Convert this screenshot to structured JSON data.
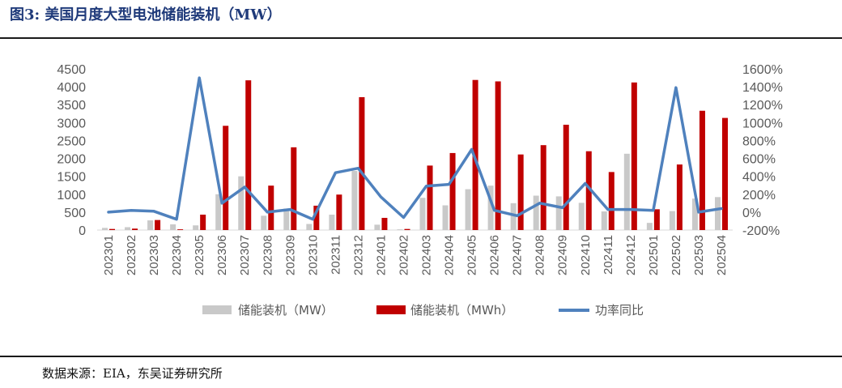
{
  "figure": {
    "title": "图3:  美国月度大型电池储能装机（MW）",
    "source": "数据来源：EIA，东吴证券研究所"
  },
  "colors": {
    "mw": "#c9c9c9",
    "mwh": "#c00000",
    "yoy": "#4f81bd",
    "title": "#1f3a7a"
  },
  "chart_data": {
    "type": "bar",
    "categories": [
      "202301",
      "202302",
      "202303",
      "202304",
      "202305",
      "202306",
      "202307",
      "202308",
      "202309",
      "202310",
      "202311",
      "202312",
      "202401",
      "202402",
      "202403",
      "202404",
      "202405",
      "202406",
      "202407",
      "202408",
      "202409",
      "202410",
      "202411",
      "202412",
      "202501",
      "202502",
      "202503",
      "202504"
    ],
    "series": [
      {
        "name": "储能装机（MW）",
        "type": "bar",
        "axis": "left",
        "values": [
          60,
          80,
          270,
          160,
          130,
          1000,
          1500,
          400,
          600,
          170,
          430,
          1650,
          150,
          20,
          900,
          690,
          1140,
          1240,
          750,
          960,
          940,
          760,
          520,
          2130,
          200,
          530,
          880,
          920
        ]
      },
      {
        "name": "储能装机（MWh）",
        "type": "bar",
        "axis": "left",
        "values": [
          30,
          40,
          280,
          20,
          430,
          2910,
          4180,
          1240,
          2310,
          680,
          990,
          3710,
          340,
          30,
          1800,
          2150,
          4190,
          4150,
          2110,
          2370,
          2940,
          2200,
          1620,
          4120,
          580,
          1830,
          3330,
          3130
        ]
      },
      {
        "name": "功率同比",
        "type": "line",
        "axis": "right",
        "values": [
          0,
          20,
          10,
          -80,
          1500,
          100,
          280,
          0,
          30,
          -80,
          440,
          490,
          170,
          -60,
          290,
          310,
          700,
          20,
          -40,
          100,
          50,
          320,
          30,
          30,
          20,
          1390,
          0,
          40
        ]
      }
    ],
    "y_left": {
      "min": 0,
      "max": 4500,
      "ticks": [
        "0",
        "500",
        "1000",
        "1500",
        "2000",
        "2500",
        "3000",
        "3500",
        "4000",
        "4500"
      ]
    },
    "y_right": {
      "min": -200,
      "max": 1600,
      "ticks": [
        "-200%",
        "0%",
        "200%",
        "400%",
        "600%",
        "800%",
        "1000%",
        "1200%",
        "1400%",
        "1600%"
      ]
    },
    "grid": false,
    "legend_position": "bottom"
  }
}
